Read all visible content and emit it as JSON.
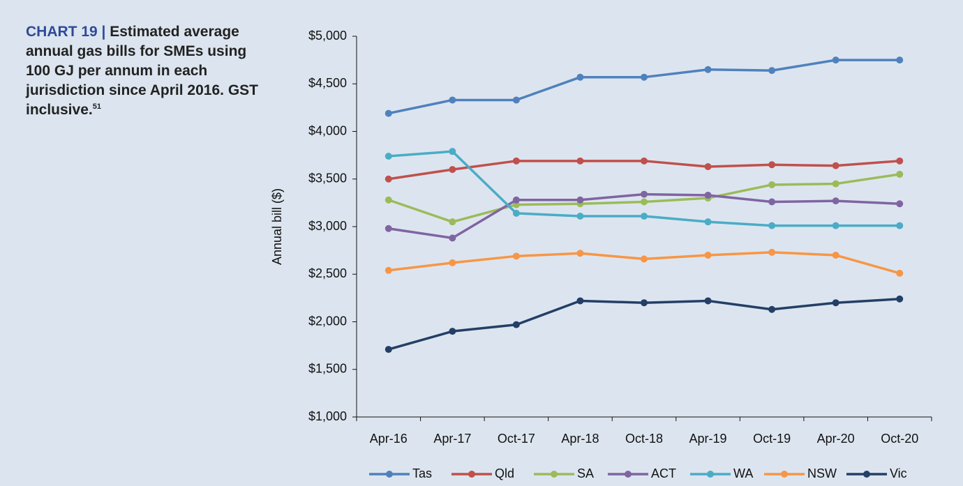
{
  "chart_data": {
    "type": "line",
    "title_label": "CHART 19 |",
    "title": "Estimated average annual gas bills for SMEs using 100 GJ per annum in each jurisdiction since April 2016. GST inclusive.",
    "title_footnote": "51",
    "y_label": "Annual bill ($)",
    "categories": [
      "Apr-16",
      "Apr-17",
      "Oct-17",
      "Apr-18",
      "Oct-18",
      "Apr-19",
      "Oct-19",
      "Apr-20",
      "Oct-20"
    ],
    "ylim": [
      1000,
      5000
    ],
    "yticks": [
      {
        "value": 1000,
        "label": "$1,000"
      },
      {
        "value": 1500,
        "label": "$1,500"
      },
      {
        "value": 2000,
        "label": "$2,000"
      },
      {
        "value": 2500,
        "label": "$2,500"
      },
      {
        "value": 3000,
        "label": "$3,000"
      },
      {
        "value": 3500,
        "label": "$3,500"
      },
      {
        "value": 4000,
        "label": "$4,000"
      },
      {
        "value": 4500,
        "label": "$4,500"
      },
      {
        "value": 5000,
        "label": "$5,000"
      }
    ],
    "grid": false,
    "legend": "bottom",
    "series": [
      {
        "name": "Tas",
        "color": "#4f81bd",
        "values": [
          4190,
          4330,
          4330,
          4570,
          4570,
          4650,
          4640,
          4750,
          4750
        ]
      },
      {
        "name": "Qld",
        "color": "#c0504d",
        "values": [
          3500,
          3600,
          3690,
          3690,
          3690,
          3630,
          3650,
          3640,
          3690
        ]
      },
      {
        "name": "SA",
        "color": "#9bbb59",
        "values": [
          3280,
          3050,
          3230,
          3240,
          3260,
          3300,
          3440,
          3450,
          3550
        ]
      },
      {
        "name": "ACT",
        "color": "#8064a2",
        "values": [
          2980,
          2880,
          3280,
          3280,
          3340,
          3330,
          3260,
          3270,
          3240
        ]
      },
      {
        "name": "WA",
        "color": "#4bacc6",
        "values": [
          3740,
          3790,
          3140,
          3110,
          3110,
          3050,
          3010,
          3010,
          3010
        ]
      },
      {
        "name": "NSW",
        "color": "#f79646",
        "values": [
          2540,
          2620,
          2690,
          2720,
          2660,
          2700,
          2730,
          2700,
          2510
        ]
      },
      {
        "name": "Vic",
        "color": "#243f66",
        "values": [
          1710,
          1900,
          1970,
          2220,
          2200,
          2220,
          2130,
          2200,
          2240
        ]
      }
    ]
  }
}
